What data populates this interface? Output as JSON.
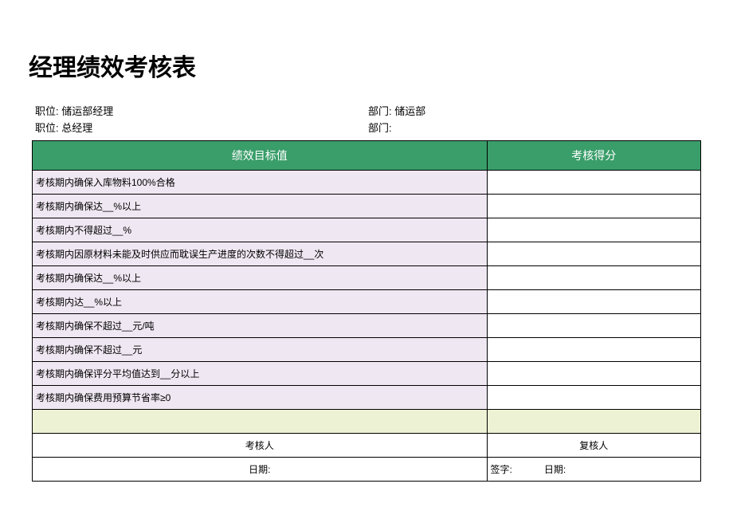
{
  "title": "经理绩效考核表",
  "info": {
    "row1": {
      "position_label": "职位:",
      "position_value": "储运部经理",
      "dept_label": "部门:",
      "dept_value": "储运部"
    },
    "row2": {
      "position_label": "职位:",
      "position_value": "总经理",
      "dept_label": "部门:",
      "dept_value": ""
    }
  },
  "headers": {
    "target_header": "绩效目标值",
    "score_header": "考核得分"
  },
  "rows": [
    {
      "target": "考核期内确保入库物料100%合格",
      "score": ""
    },
    {
      "target": "考核期内确保达__%以上",
      "score": ""
    },
    {
      "target": "考核期内不得超过__%",
      "score": ""
    },
    {
      "target": "考核期内因原材料未能及时供应而耽误生产进度的次数不得超过__次",
      "score": ""
    },
    {
      "target": "考核期内确保达__%以上",
      "score": ""
    },
    {
      "target": "考核期内达__%以上",
      "score": ""
    },
    {
      "target": "考核期内确保不超过__元/吨",
      "score": ""
    },
    {
      "target": "考核期内确保不超过__元",
      "score": ""
    },
    {
      "target": "考核期内确保评分平均值达到__分以上",
      "score": ""
    },
    {
      "target": "考核期内确保费用预算节省率≥0",
      "score": ""
    }
  ],
  "total_row": {
    "target": "",
    "score": ""
  },
  "footer": {
    "examiner_label": "考核人",
    "reviewer_label": "复核人",
    "date_label_left": "日期:",
    "sign_label": "签字:",
    "date_label_right": "日期:"
  },
  "styles": {
    "header_bg": "#3a9e6a",
    "header_fg": "#ffffff",
    "target_bg": "#efe7f2",
    "total_bg": "#eef2d4",
    "border_color": "#000000",
    "page_bg": "#ffffff",
    "col_widths": {
      "target": "68%",
      "score": "32%"
    }
  }
}
